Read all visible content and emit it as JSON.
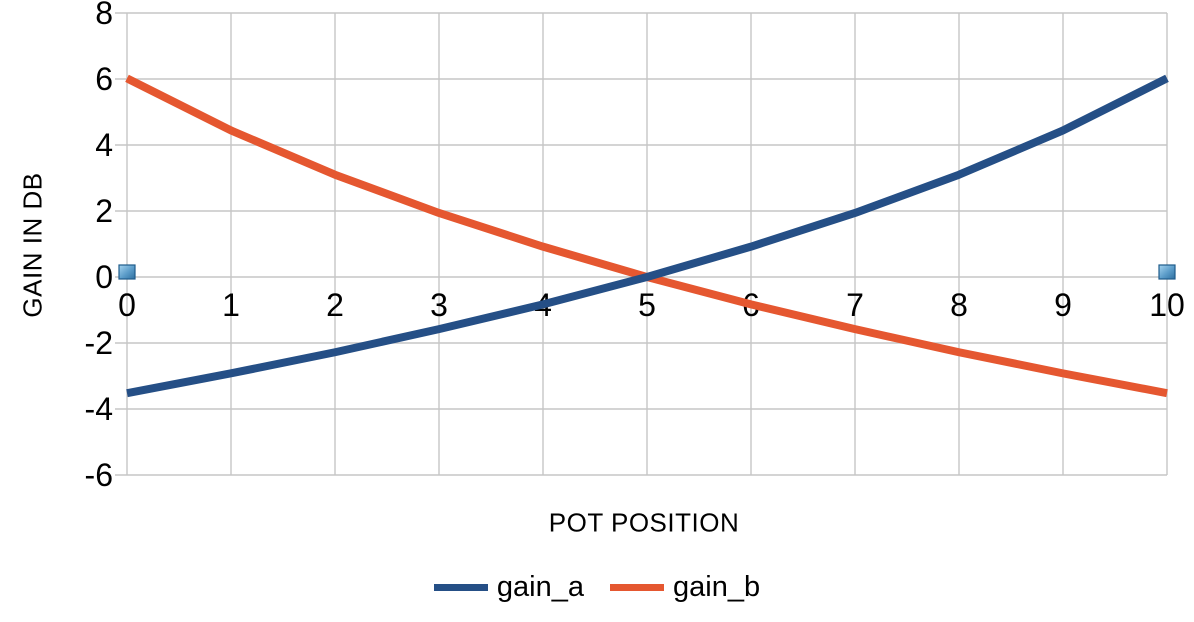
{
  "chart_data": {
    "type": "line",
    "title": "",
    "xlabel": "POT POSITION",
    "ylabel": "GAIN IN DB",
    "categories": [
      0,
      1,
      2,
      3,
      4,
      5,
      6,
      7,
      8,
      9,
      10
    ],
    "series": [
      {
        "name": "gain_a",
        "color": "#254F86",
        "values": [
          -3.52,
          -2.92,
          -2.28,
          -1.58,
          -0.83,
          0.0,
          0.92,
          1.94,
          3.1,
          4.44,
          6.02
        ]
      },
      {
        "name": "gain_b",
        "color": "#E55730",
        "values": [
          6.02,
          4.44,
          3.1,
          1.94,
          0.92,
          0.0,
          -0.83,
          -1.58,
          -2.28,
          -2.92,
          -3.52
        ]
      }
    ],
    "xlim": [
      0,
      10
    ],
    "ylim": [
      -6,
      8
    ],
    "x_ticks": [
      0,
      1,
      2,
      3,
      4,
      5,
      6,
      7,
      8,
      9,
      10
    ],
    "y_ticks": [
      8,
      6,
      4,
      2,
      0,
      -2,
      -4,
      -6
    ],
    "grid": true,
    "legend_position": "bottom",
    "line_width": 8,
    "colors": {
      "gridline": "#C6C6C6",
      "text": "#000000",
      "background": "#FFFFFF"
    },
    "selection_handles": {
      "points": [
        {
          "x": 0,
          "y": 0
        },
        {
          "x": 10,
          "y": 0
        }
      ],
      "fill_light": "#A6D4F0",
      "fill_mid": "#5A9BC8",
      "fill_dark": "#2E6F9F",
      "border": "#1F5C8B"
    }
  }
}
